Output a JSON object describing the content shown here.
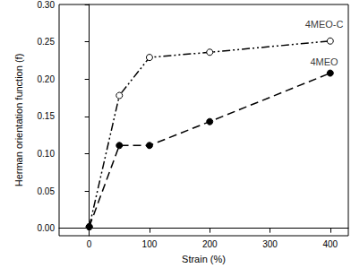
{
  "chart_data": {
    "type": "line",
    "x_label": "Strain (%)",
    "y_label": "Herman orientation function (f)",
    "xlim": [
      -50,
      430
    ],
    "xticks": [
      0,
      100,
      200,
      300,
      400
    ],
    "ylim": [
      -0.01,
      0.3
    ],
    "yticks": [
      {
        "value": 0,
        "label": "0.00"
      },
      {
        "value": 0.05,
        "label": "0.05"
      },
      {
        "value": 0.1,
        "label": "0.10"
      },
      {
        "value": 0.15,
        "label": "0.15"
      },
      {
        "value": 0.2,
        "label": "0.20"
      },
      {
        "value": 0.25,
        "label": "0.25"
      },
      {
        "value": 0.3,
        "label": "0.30"
      }
    ],
    "grid": false,
    "x": [
      0,
      50,
      100,
      200,
      400
    ],
    "series": [
      {
        "name": "4MEO-C",
        "color": "#000000",
        "marker": "open_circle",
        "line_style": "dash_dot_dot",
        "values": [
          0.002,
          0.178,
          0.229,
          0.236,
          0.251
        ]
      },
      {
        "name": "4MEO",
        "color": "#000000",
        "marker": "filled_circle",
        "line_style": "dashed",
        "values": [
          0.002,
          0.111,
          0.111,
          0.143,
          0.208
        ]
      }
    ],
    "annotations": [
      {
        "text": "4MEO-C",
        "x": 390,
        "y": 0.273
      },
      {
        "text": "4MEO",
        "x": 390,
        "y": 0.223
      }
    ]
  }
}
